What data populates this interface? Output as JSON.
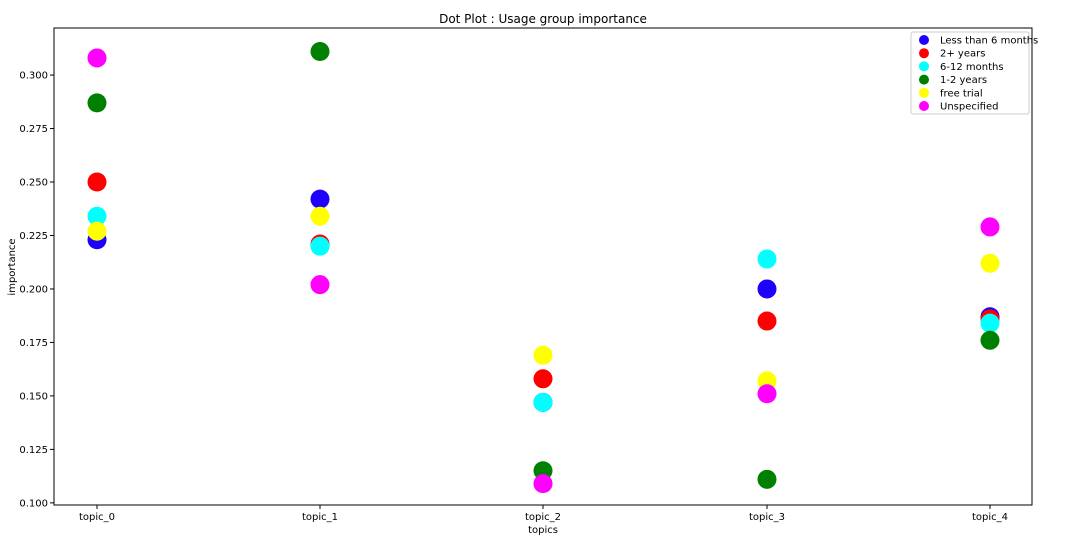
{
  "chart_data": {
    "type": "scatter",
    "title": "Dot Plot : Usage group importance",
    "xlabel": "topics",
    "ylabel": "importance",
    "categories": [
      "topic_0",
      "topic_1",
      "topic_2",
      "topic_3",
      "topic_4"
    ],
    "ylim": [
      0.099,
      0.322
    ],
    "yticks": [
      0.1,
      0.125,
      0.15,
      0.175,
      0.2,
      0.225,
      0.25,
      0.275,
      0.3
    ],
    "ytick_labels": [
      "0.100",
      "0.125",
      "0.150",
      "0.175",
      "0.200",
      "0.225",
      "0.250",
      "0.275",
      "0.300"
    ],
    "grid": false,
    "legend_position": "top-right",
    "series": [
      {
        "name": "Less than 6 months",
        "color": "#1f00ff",
        "values": [
          0.223,
          0.242,
          0.147,
          0.2,
          0.187
        ]
      },
      {
        "name": "2+ years",
        "color": "#ff0000",
        "values": [
          0.25,
          0.221,
          0.158,
          0.185,
          0.186
        ]
      },
      {
        "name": "6-12 months",
        "color": "#00ffff",
        "values": [
          0.234,
          0.22,
          0.147,
          0.214,
          0.184
        ]
      },
      {
        "name": "1-2 years",
        "color": "#008000",
        "values": [
          0.287,
          0.311,
          0.115,
          0.111,
          0.176
        ]
      },
      {
        "name": "free trial",
        "color": "#ffff00",
        "values": [
          0.227,
          0.234,
          0.169,
          0.157,
          0.212
        ]
      },
      {
        "name": "Unspecified",
        "color": "#ff00ff",
        "values": [
          0.308,
          0.202,
          0.109,
          0.151,
          0.229
        ]
      }
    ]
  }
}
